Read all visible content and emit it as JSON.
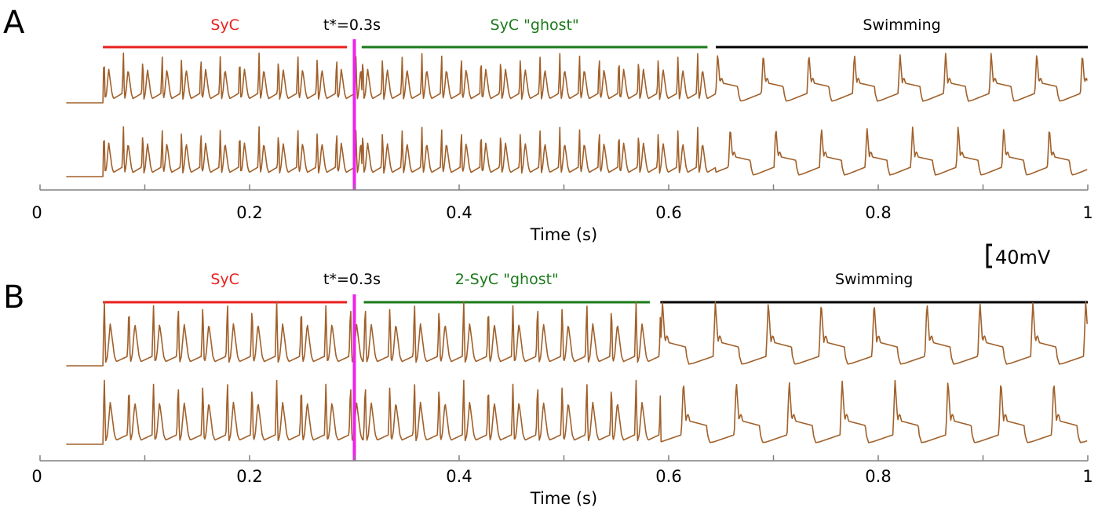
{
  "figure": {
    "scale_bar_label": "40mV",
    "trace_color": "#a0602a",
    "marker_color": "#ee22ee"
  },
  "chart_data": [
    {
      "type": "line",
      "panel": "A",
      "xlabel": "Time (s)",
      "xlim": [
        0,
        1
      ],
      "x_ticks": [
        0,
        0.1,
        0.2,
        0.3,
        0.4,
        0.5,
        0.6,
        0.7,
        0.8,
        0.9,
        1
      ],
      "x_tick_labels": [
        "0",
        "0.2",
        "0.4",
        "0.6",
        "0.8",
        "1"
      ],
      "x_tick_label_values": [
        0,
        0.2,
        0.4,
        0.6,
        0.8,
        1
      ],
      "tstar": {
        "label": "t*=0.3s",
        "t": 0.3
      },
      "trace_start": 0.025,
      "trace_end": 1.0,
      "onset": 0.06,
      "phases": [
        {
          "label": "SyC",
          "start": 0.06,
          "end": 0.293,
          "color": "#e8201e",
          "style": "syc",
          "period": 0.0185
        },
        {
          "label": "SyC \"ghost\"",
          "start": 0.307,
          "end": 0.637,
          "color": "#1a7a1a",
          "style": "syc",
          "period": 0.0188
        },
        {
          "label": "Swimming",
          "start": 0.645,
          "end": 1.0,
          "color": "#000000",
          "style": "swim",
          "period": 0.0435
        }
      ],
      "series": [
        {
          "phase_offset": 0.0,
          "swim_offset": 0.0
        },
        {
          "phase_offset": 0.0,
          "swim_offset": 0.012
        }
      ]
    },
    {
      "type": "line",
      "panel": "B",
      "xlabel": "Time (s)",
      "xlim": [
        0,
        1
      ],
      "x_ticks": [
        0,
        0.1,
        0.2,
        0.3,
        0.4,
        0.5,
        0.6,
        0.7,
        0.8,
        0.9,
        1
      ],
      "x_tick_labels": [
        "0",
        "0.2",
        "0.4",
        "0.6",
        "0.8",
        "1"
      ],
      "x_tick_label_values": [
        0,
        0.2,
        0.4,
        0.6,
        0.8,
        1
      ],
      "tstar": {
        "label": "t*=0.3s",
        "t": 0.3
      },
      "trace_start": 0.025,
      "trace_end": 1.0,
      "onset": 0.06,
      "phases": [
        {
          "label": "SyC",
          "start": 0.06,
          "end": 0.293,
          "color": "#e8201e",
          "style": "syc",
          "period": 0.0235
        },
        {
          "label": "2-SyC \"ghost\"",
          "start": 0.309,
          "end": 0.582,
          "color": "#1a7a1a",
          "style": "syc",
          "period": 0.0235
        },
        {
          "label": "Swimming",
          "start": 0.592,
          "end": 1.0,
          "color": "#000000",
          "style": "swim",
          "period": 0.0505
        }
      ],
      "series": [
        {
          "phase_offset": 0.0,
          "swim_offset": 0.0
        },
        {
          "phase_offset": 0.0,
          "swim_offset": 0.02
        }
      ]
    }
  ]
}
